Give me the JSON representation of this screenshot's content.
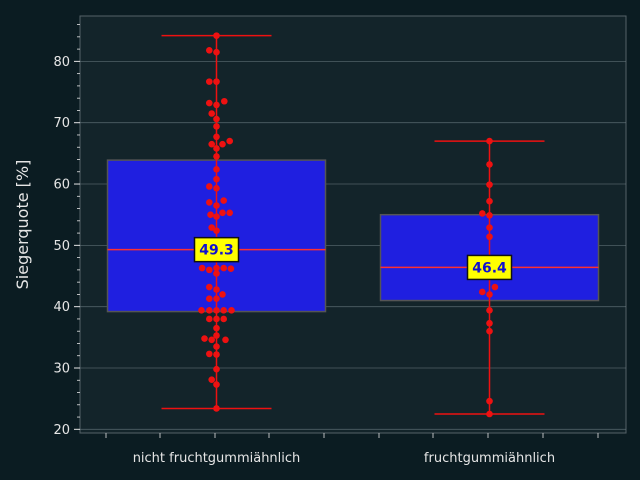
{
  "chart_data": {
    "type": "box",
    "title": "",
    "xlabel": "",
    "ylabel": "Siegerquote [%]",
    "ylim": [
      19.4,
      87.4
    ],
    "yticks": [
      20,
      30,
      40,
      50,
      60,
      70,
      80
    ],
    "grid": true,
    "categories": [
      "nicht fruchtgummiähnlich",
      "fruchtgummiähnlich"
    ],
    "boxes": [
      {
        "category": "nicht fruchtgummiähnlich",
        "min": 23.4,
        "q1": 39.2,
        "median": 49.3,
        "q3": 63.9,
        "max": 84.2,
        "median_label": "49.3",
        "points": [
          [
            0.0,
            84.2
          ],
          [
            -0.12,
            81.8
          ],
          [
            0.0,
            81.5
          ],
          [
            -0.12,
            76.7
          ],
          [
            0.0,
            76.7
          ],
          [
            -0.12,
            73.2
          ],
          [
            0.0,
            72.9
          ],
          [
            0.13,
            73.5
          ],
          [
            -0.08,
            71.5
          ],
          [
            0.0,
            70.6
          ],
          [
            0.0,
            69.4
          ],
          [
            0.0,
            67.7
          ],
          [
            -0.08,
            66.5
          ],
          [
            0.1,
            66.5
          ],
          [
            0.22,
            67.0
          ],
          [
            0.0,
            65.8
          ],
          [
            0.0,
            64.5
          ],
          [
            0.0,
            62.4
          ],
          [
            0.0,
            60.8
          ],
          [
            -0.12,
            59.6
          ],
          [
            0.0,
            59.3
          ],
          [
            -0.12,
            57.0
          ],
          [
            0.12,
            57.3
          ],
          [
            0.0,
            56.5
          ],
          [
            -0.1,
            55.0
          ],
          [
            0.0,
            54.7
          ],
          [
            0.1,
            55.3
          ],
          [
            0.22,
            55.3
          ],
          [
            -0.08,
            52.9
          ],
          [
            0.0,
            52.4
          ],
          [
            -0.24,
            49.4
          ],
          [
            -0.12,
            49.4
          ],
          [
            0.0,
            49.4
          ],
          [
            0.12,
            49.4
          ],
          [
            0.24,
            49.4
          ],
          [
            -0.24,
            46.3
          ],
          [
            -0.12,
            46.0
          ],
          [
            0.0,
            46.3
          ],
          [
            0.12,
            46.3
          ],
          [
            0.24,
            46.2
          ],
          [
            0.0,
            45.4
          ],
          [
            -0.12,
            43.2
          ],
          [
            0.0,
            42.8
          ],
          [
            0.1,
            42.0
          ],
          [
            -0.12,
            41.3
          ],
          [
            0.0,
            41.3
          ],
          [
            -0.25,
            39.4
          ],
          [
            -0.12,
            39.4
          ],
          [
            0.0,
            39.4
          ],
          [
            0.12,
            39.4
          ],
          [
            0.25,
            39.4
          ],
          [
            -0.12,
            38.0
          ],
          [
            0.0,
            38.0
          ],
          [
            0.12,
            38.0
          ],
          [
            0.0,
            36.5
          ],
          [
            -0.2,
            34.8
          ],
          [
            -0.08,
            34.6
          ],
          [
            0.0,
            35.3
          ],
          [
            0.15,
            34.6
          ],
          [
            0.0,
            33.5
          ],
          [
            -0.12,
            32.3
          ],
          [
            0.0,
            32.2
          ],
          [
            0.0,
            29.8
          ],
          [
            -0.08,
            28.1
          ],
          [
            0.0,
            27.3
          ],
          [
            0.0,
            23.4
          ]
        ]
      },
      {
        "category": "fruchtgummiähnlich",
        "min": 22.5,
        "q1": 41.0,
        "median": 46.4,
        "q3": 55.0,
        "max": 67.0,
        "median_label": "46.4",
        "points": [
          [
            0.0,
            67.0
          ],
          [
            0.0,
            63.2
          ],
          [
            0.0,
            59.9
          ],
          [
            0.0,
            57.2
          ],
          [
            -0.12,
            55.2
          ],
          [
            0.0,
            54.9
          ],
          [
            0.0,
            52.9
          ],
          [
            0.0,
            51.4
          ],
          [
            -0.12,
            46.5
          ],
          [
            0.0,
            46.4
          ],
          [
            0.09,
            43.2
          ],
          [
            -0.12,
            42.4
          ],
          [
            0.0,
            42.0
          ],
          [
            0.0,
            39.4
          ],
          [
            0.0,
            37.3
          ],
          [
            0.0,
            36.0
          ],
          [
            0.0,
            24.6
          ],
          [
            0.0,
            22.5
          ]
        ]
      }
    ]
  },
  "colors": {
    "background": "#0b1c22",
    "plot_background": "#13242a",
    "grid": "#6a7a80",
    "box_fill": "#1f1fe0",
    "box_edge": "#555555",
    "median": "#ff3030",
    "whisker": "#ee1111",
    "points": "#ee1111",
    "label_fill": "#ffff00",
    "label_text": "#1010d0",
    "text": "#e6e6e6"
  }
}
